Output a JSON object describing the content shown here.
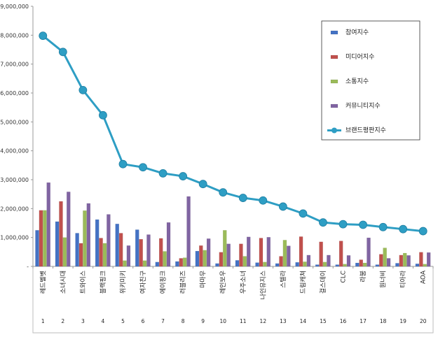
{
  "chart_data": {
    "type": "bar",
    "y_axis": {
      "min": 0,
      "max": 9000000,
      "step": 1000000,
      "tick_labels": [
        "-",
        "1,000,000",
        "2,000,000",
        "3,000,000",
        "4,000,000",
        "5,000,000",
        "6,000,000",
        "7,000,000",
        "8,000,000",
        "9,000,000"
      ]
    },
    "categories": [
      "레드벨벳",
      "소녀시대",
      "트와이스",
      "블랙핑크",
      "위키미키",
      "여자친구",
      "에이핑크",
      "러블리즈",
      "마마무",
      "레인보우",
      "우주소녀",
      "나인뮤지스",
      "스텔라",
      "드림캐쳐",
      "걸스데이",
      "CLC",
      "라붐",
      "원너비",
      "티아라",
      "AOA"
    ],
    "ranks": [
      "1",
      "2",
      "3",
      "4",
      "5",
      "6",
      "7",
      "8",
      "9",
      "10",
      "11",
      "12",
      "13",
      "14",
      "15",
      "16",
      "17",
      "18",
      "19",
      "20"
    ],
    "series": [
      {
        "name": "참여지수",
        "kind": "bar",
        "color": "#4472c4",
        "values": [
          1250000,
          1550000,
          1150000,
          1620000,
          1470000,
          1270000,
          150000,
          170000,
          530000,
          100000,
          210000,
          130000,
          100000,
          140000,
          60000,
          60000,
          120000,
          60000,
          110000,
          90000
        ]
      },
      {
        "name": "미디어지수",
        "kind": "bar",
        "color": "#c0504d",
        "values": [
          1940000,
          2250000,
          800000,
          980000,
          1150000,
          940000,
          970000,
          280000,
          720000,
          490000,
          780000,
          980000,
          350000,
          1030000,
          850000,
          880000,
          230000,
          420000,
          390000,
          490000
        ]
      },
      {
        "name": "소통지수",
        "kind": "bar",
        "color": "#9bbb59",
        "values": [
          1940000,
          1000000,
          1930000,
          800000,
          200000,
          200000,
          520000,
          300000,
          560000,
          1250000,
          350000,
          150000,
          910000,
          160000,
          150000,
          80000,
          120000,
          640000,
          460000,
          80000
        ]
      },
      {
        "name": "커뮤니티지수",
        "kind": "bar",
        "color": "#8064a2",
        "values": [
          2900000,
          2580000,
          2180000,
          1800000,
          720000,
          1100000,
          1520000,
          2420000,
          960000,
          780000,
          1020000,
          1010000,
          710000,
          390000,
          390000,
          380000,
          990000,
          280000,
          380000,
          480000
        ]
      },
      {
        "name": "브랜드평판지수",
        "kind": "line",
        "color": "#2e9ec4",
        "values": [
          7980000,
          7420000,
          6100000,
          5230000,
          3540000,
          3430000,
          3220000,
          3120000,
          2850000,
          2560000,
          2370000,
          2280000,
          2070000,
          1830000,
          1520000,
          1460000,
          1440000,
          1360000,
          1290000,
          1220000
        ]
      }
    ],
    "legend_position": "top-right",
    "grid": false
  }
}
